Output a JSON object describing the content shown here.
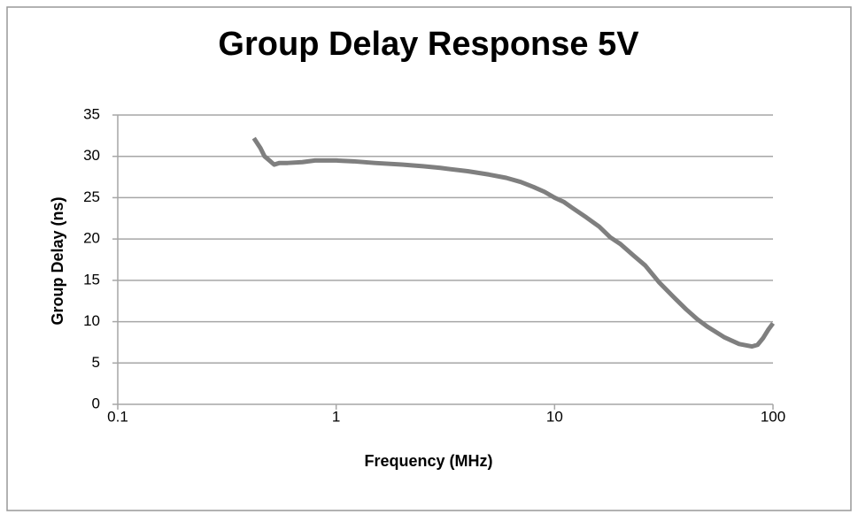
{
  "chart_data": {
    "type": "line",
    "title": "Group Delay Response 5V",
    "xlabel": "Frequency (MHz)",
    "ylabel": "Group Delay (ns)",
    "x": [
      0.42,
      0.45,
      0.47,
      0.5,
      0.52,
      0.55,
      0.6,
      0.7,
      0.8,
      0.9,
      1.0,
      1.2,
      1.5,
      2,
      2.5,
      3,
      4,
      5,
      6,
      7,
      8,
      9,
      10,
      11,
      12,
      14,
      16,
      18,
      20,
      23,
      26,
      30,
      35,
      40,
      45,
      50,
      60,
      70,
      80,
      85,
      90,
      95,
      100
    ],
    "series": [
      {
        "name": "Group Delay",
        "color": "#7f7f7f",
        "values": [
          32.2,
          31.0,
          30.0,
          29.4,
          29.0,
          29.2,
          29.2,
          29.3,
          29.5,
          29.5,
          29.5,
          29.4,
          29.2,
          29.0,
          28.8,
          28.6,
          28.2,
          27.8,
          27.4,
          26.9,
          26.3,
          25.7,
          25.0,
          24.5,
          23.8,
          22.6,
          21.5,
          20.2,
          19.4,
          18.0,
          16.8,
          14.8,
          13.0,
          11.5,
          10.3,
          9.4,
          8.1,
          7.3,
          7.0,
          7.2,
          8.0,
          9.0,
          9.8
        ]
      }
    ],
    "xlim": [
      0.1,
      100
    ],
    "xticks": [
      0.1,
      1,
      10,
      100
    ],
    "log_x": true,
    "ylim": [
      0,
      35
    ],
    "yticks": [
      0,
      5,
      10,
      15,
      20,
      25,
      30,
      35
    ],
    "grid": true
  }
}
